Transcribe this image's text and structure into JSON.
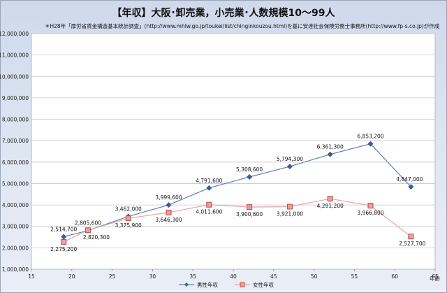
{
  "title": "【年収】大阪･卸売業，小売業･人数規模10～99人",
  "source_note": "＊H28年「厚労省賃金構造基本統計調査」(http://www.mhlw.go.jp/toukei/list/chinginkouzou.html)を基に安達社会保険労務士事務所(http://www.fp-s.co.jp)が作成",
  "chart_data": {
    "type": "line",
    "title": "【年収】大阪･卸売業，小売業･人数規模10～99人",
    "xlabel": "年齢",
    "ylabel": "",
    "xlim": [
      15,
      65
    ],
    "ylim": [
      1000000,
      12000000
    ],
    "xticks": [
      15,
      20,
      25,
      30,
      35,
      40,
      45,
      50,
      55,
      60,
      65
    ],
    "yticks": [
      1000000,
      2000000,
      3000000,
      4000000,
      5000000,
      6000000,
      7000000,
      8000000,
      9000000,
      10000000,
      11000000,
      12000000
    ],
    "ytick_labels": [
      "1,000,000",
      "2,000,000",
      "3,000,000",
      "4,000,000",
      "5,000,000",
      "6,000,000",
      "7,000,000",
      "8,000,000",
      "9,000,000",
      "10,000,000",
      "11,000,000",
      "12,000,000"
    ],
    "grid": true,
    "legend_position": "bottom",
    "series": [
      {
        "name": "男性年収",
        "color": "#4a6ea8",
        "marker": "diamond",
        "x": [
          19,
          22,
          27,
          32,
          37,
          42,
          47,
          52,
          57,
          62
        ],
        "values": [
          2514700,
          2805600,
          3462000,
          3999600,
          4791600,
          5308600,
          5794300,
          6361300,
          6853200,
          4847000
        ],
        "labels": [
          "2,514,700",
          "2,805,600",
          "3,462,000",
          "3,999,600",
          "4,791,600",
          "5,308,600",
          "5,794,300",
          "6,361,300",
          "6,853,200",
          "4,847,000"
        ]
      },
      {
        "name": "女性年収",
        "color": "#e0a0a0",
        "marker": "square",
        "x": [
          19,
          22,
          27,
          32,
          37,
          42,
          47,
          52,
          57,
          62
        ],
        "values": [
          2275200,
          2820300,
          3375900,
          3646300,
          4011600,
          3900600,
          3921000,
          4291200,
          3966800,
          2527700
        ],
        "labels": [
          "2,275,200",
          "2,820,300",
          "3,375,900",
          "3,646,300",
          "4,011,600",
          "3,900,600",
          "3,921,000",
          "4,291,200",
          "3,966,800",
          "2,527,700"
        ]
      }
    ]
  }
}
